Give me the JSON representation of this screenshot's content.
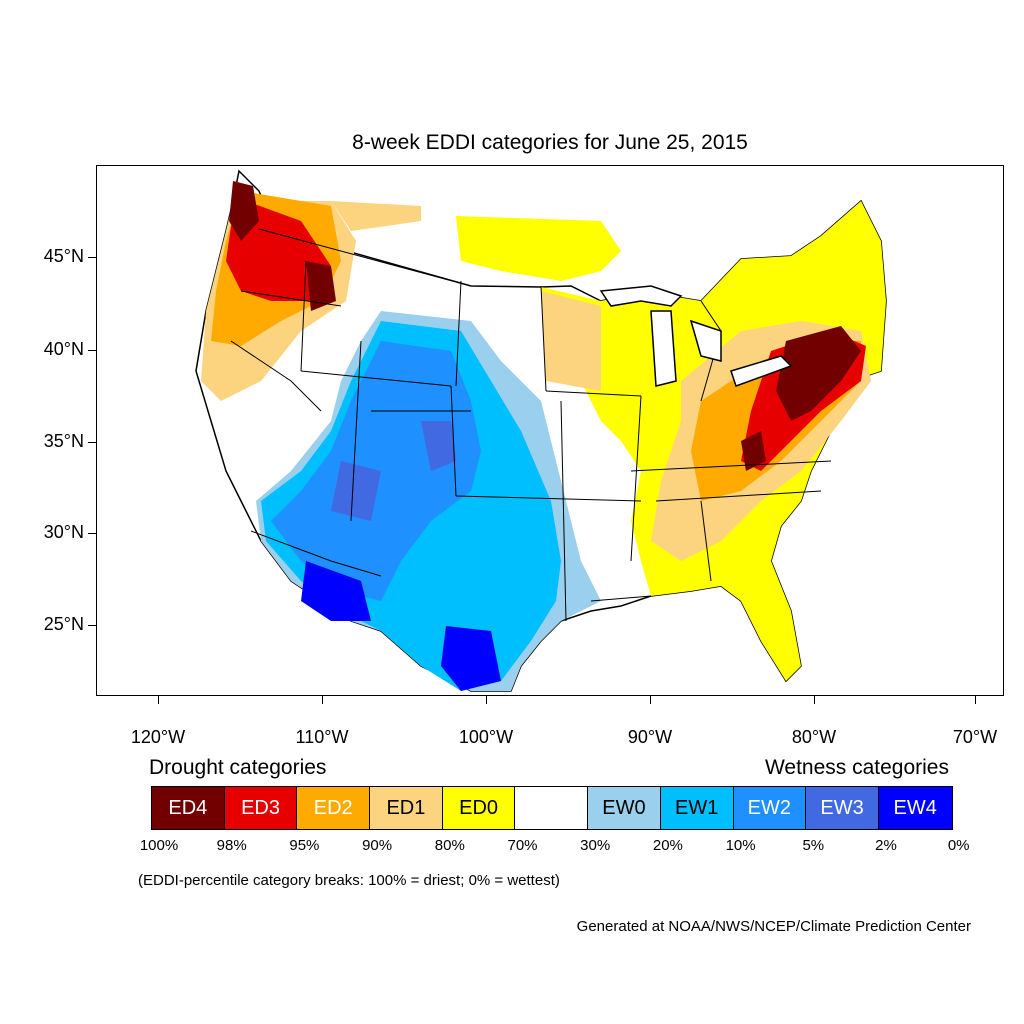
{
  "title": "8-week EDDI categories for June 25, 2015",
  "latitude_labels": [
    "45°N",
    "40°N",
    "35°N",
    "30°N",
    "25°N"
  ],
  "longitude_labels": [
    "120°W",
    "110°W",
    "100°W",
    "90°W",
    "80°W",
    "70°W"
  ],
  "legend": {
    "drought_heading": "Drought categories",
    "wetness_heading": "Wetness categories",
    "categories": [
      {
        "label": "ED4",
        "color": "#730000",
        "text_color": "#ffffff"
      },
      {
        "label": "ED3",
        "color": "#e60000",
        "text_color": "#ffffff"
      },
      {
        "label": "ED2",
        "color": "#ffaa00",
        "text_color": "#ffffff"
      },
      {
        "label": "ED1",
        "color": "#fcd37f",
        "text_color": "#000000"
      },
      {
        "label": "ED0",
        "color": "#ffff00",
        "text_color": "#000000"
      },
      {
        "label": "",
        "color": "#ffffff",
        "text_color": "#000000"
      },
      {
        "label": "EW0",
        "color": "#9ad0ee",
        "text_color": "#000000"
      },
      {
        "label": "EW1",
        "color": "#00bfff",
        "text_color": "#000000"
      },
      {
        "label": "EW2",
        "color": "#1e90ff",
        "text_color": "#ffffff"
      },
      {
        "label": "EW3",
        "color": "#4169e1",
        "text_color": "#ffffff"
      },
      {
        "label": "EW4",
        "color": "#0000ff",
        "text_color": "#ffffff"
      }
    ],
    "breaks": [
      "100%",
      "98%",
      "95%",
      "90%",
      "80%",
      "70%",
      "30%",
      "20%",
      "10%",
      "5%",
      "2%",
      "0%"
    ]
  },
  "breaks_note": "(EDDI-percentile category breaks: 100% = driest; 0% = wettest)",
  "credit": "Generated at NOAA/NWS/NCEP/Climate Prediction Center"
}
